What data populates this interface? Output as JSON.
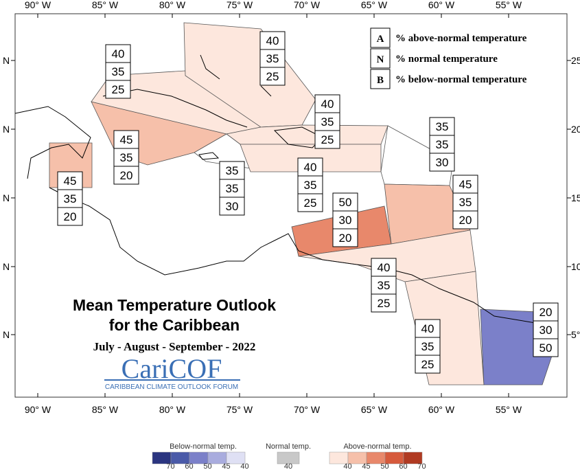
{
  "map": {
    "longitude_labels": [
      "90° W",
      "85° W",
      "80° W",
      "75° W",
      "70° W",
      "65° W",
      "60° W",
      "55° W"
    ],
    "latitude_labels_left": [
      "N",
      "N",
      "N",
      "N",
      "N"
    ],
    "latitude_labels_right": [
      "25",
      "20",
      "15",
      "10",
      "5°"
    ],
    "key": [
      {
        "code": "A",
        "text": "% above-normal temperature"
      },
      {
        "code": "N",
        "text": "% normal temperature"
      },
      {
        "code": "B",
        "text": "% below-normal temperature"
      }
    ],
    "regions": [
      {
        "probabilities": [
          45,
          35,
          20
        ],
        "color": "#f6c0aa"
      },
      {
        "probabilities": [
          45,
          35,
          20
        ],
        "color": "#f6c0aa"
      },
      {
        "probabilities": [
          40,
          35,
          25
        ],
        "color": "#fde7dd"
      },
      {
        "probabilities": [
          40,
          35,
          25
        ],
        "color": "#fde7dd"
      },
      {
        "probabilities": [
          40,
          35,
          25
        ],
        "color": "#fde7dd"
      },
      {
        "probabilities": [
          35,
          35,
          30
        ],
        "color": "#ffffff"
      },
      {
        "probabilities": [
          40,
          35,
          25
        ],
        "color": "#fde7dd"
      },
      {
        "probabilities": [
          35,
          35,
          30
        ],
        "color": "#ffffff"
      },
      {
        "probabilities": [
          45,
          35,
          20
        ],
        "color": "#f6c0aa"
      },
      {
        "probabilities": [
          50,
          30,
          20
        ],
        "color": "#e8886b"
      },
      {
        "probabilities": [
          40,
          35,
          25
        ],
        "color": "#fde7dd"
      },
      {
        "probabilities": [
          40,
          35,
          25
        ],
        "color": "#fde7dd"
      },
      {
        "probabilities": [
          20,
          30,
          50
        ],
        "color": "#7b80c9"
      }
    ],
    "title": [
      "Mean Temperature Outlook",
      "for the Caribbean"
    ],
    "period": "July - August - September - 2022",
    "logo": "CariCOF",
    "logo_subtitle": "CARIBBEAN CLIMATE OUTLOOK FORUM"
  },
  "color_legend": {
    "below": {
      "label": "Below-normal temp.",
      "ticks": [
        70,
        60,
        50,
        45,
        40
      ],
      "colors": [
        "#2b3580",
        "#4a5aa8",
        "#7b80c9",
        "#a9acde",
        "#dfe0f4"
      ]
    },
    "normal": {
      "label": "Normal temp.",
      "ticks": [
        40
      ],
      "colors": [
        "#c8c8c8"
      ]
    },
    "above": {
      "label": "Above-normal temp.",
      "ticks": [
        40,
        45,
        50,
        60,
        70
      ],
      "colors": [
        "#fde7dd",
        "#f6c0aa",
        "#e8886b",
        "#d65a3c",
        "#b03a22"
      ]
    }
  }
}
